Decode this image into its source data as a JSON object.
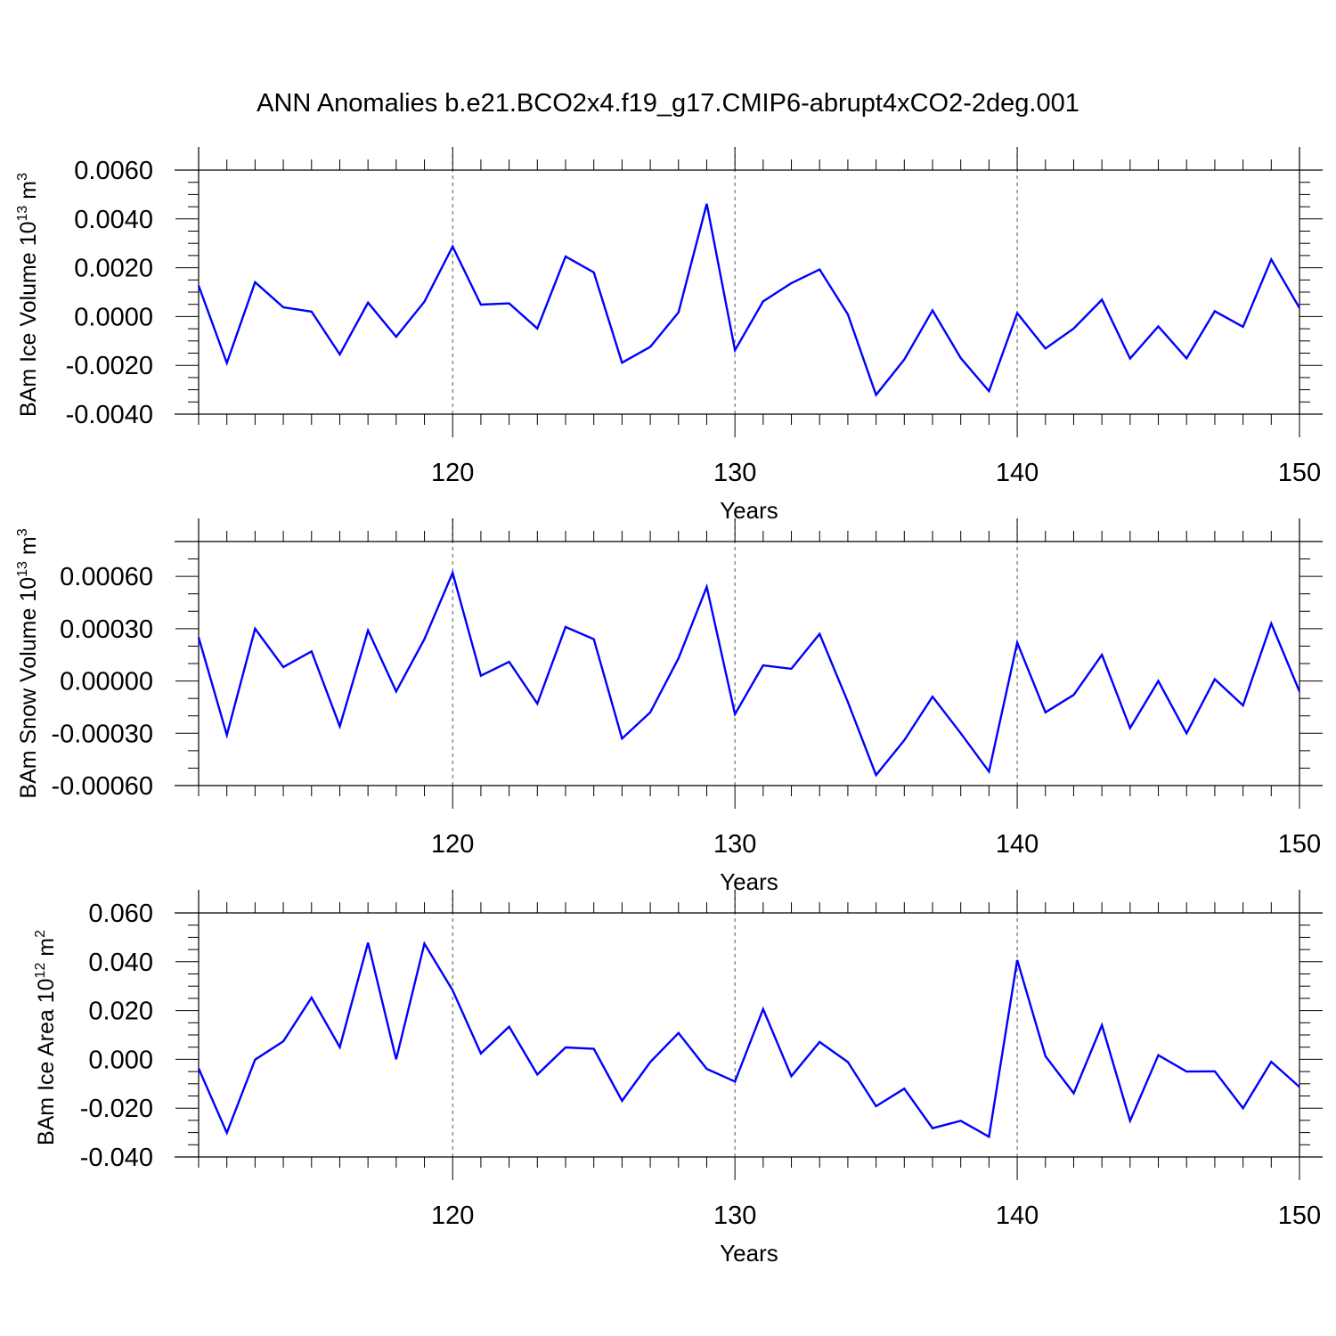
{
  "title": "ANN Anomalies b.e21.BCO2x4.f19_g17.CMIP6-abrupt4xCO2-2deg.001",
  "style": {
    "line_color": "#0000ff",
    "axis_color": "#000000",
    "grid_color": "#555555"
  },
  "chart_data": [
    {
      "type": "line",
      "xlabel": "Years",
      "ylabel": "BAm Ice Volume 10",
      "ylabel_exp": "13",
      "ylabel_unit": " m",
      "ylabel_unit_exp": "3",
      "xlim": [
        111,
        150
      ],
      "ylim": [
        -0.004,
        0.006
      ],
      "yticks": [
        0.006,
        0.004,
        0.002,
        0.0,
        -0.002,
        -0.004
      ],
      "ytick_labels": [
        "0.0060",
        "0.0040",
        "0.0020",
        "0.0000",
        "-0.0020",
        "-0.0040"
      ],
      "yminor_step": 0.0005,
      "xticks": [
        120,
        130,
        140,
        150
      ],
      "xtick_labels": [
        "120",
        "130",
        "140",
        "150"
      ],
      "x_gridlines": [
        120,
        130,
        140
      ],
      "x": [
        111,
        112,
        113,
        114,
        115,
        116,
        117,
        118,
        119,
        120,
        121,
        122,
        123,
        124,
        125,
        126,
        127,
        128,
        129,
        130,
        131,
        132,
        133,
        134,
        135,
        136,
        137,
        138,
        139,
        140,
        141,
        142,
        143,
        144,
        145,
        146,
        147,
        148,
        149,
        150
      ],
      "values": [
        0.00127,
        -0.0019,
        0.00141,
        0.00038,
        0.0002,
        -0.00155,
        0.00057,
        -0.00083,
        0.00061,
        0.00287,
        0.00049,
        0.00054,
        -0.00049,
        0.00246,
        0.00181,
        -0.00189,
        -0.00124,
        0.00017,
        0.00462,
        -0.00138,
        0.00062,
        0.00137,
        0.00193,
        9e-05,
        -0.00321,
        -0.00176,
        0.00025,
        -0.0017,
        -0.00306,
        0.00014,
        -0.00131,
        -0.00049,
        0.00069,
        -0.00172,
        -0.0004,
        -0.00171,
        0.00022,
        -0.00042,
        0.00234,
        0.00035
      ]
    },
    {
      "type": "line",
      "xlabel": "Years",
      "ylabel": "BAm Snow Volume 10",
      "ylabel_exp": "13",
      "ylabel_unit": " m",
      "ylabel_unit_exp": "3",
      "xlim": [
        111,
        150
      ],
      "ylim": [
        -0.0006,
        0.0008
      ],
      "yticks": [
        0.0006,
        0.0003,
        0.0,
        -0.0003,
        -0.0006
      ],
      "ytick_labels": [
        "0.00060",
        "0.00030",
        "0.00000",
        "-0.00030",
        "-0.00060"
      ],
      "yminor_step": 0.0001,
      "xticks": [
        120,
        130,
        140,
        150
      ],
      "xtick_labels": [
        "120",
        "130",
        "140",
        "150"
      ],
      "x_gridlines": [
        120,
        130,
        140
      ],
      "x": [
        111,
        112,
        113,
        114,
        115,
        116,
        117,
        118,
        119,
        120,
        121,
        122,
        123,
        124,
        125,
        126,
        127,
        128,
        129,
        130,
        131,
        132,
        133,
        134,
        135,
        136,
        137,
        138,
        139,
        140,
        141,
        142,
        143,
        144,
        145,
        146,
        147,
        148,
        149,
        150
      ],
      "values": [
        0.00025,
        -0.00031,
        0.0003,
        8e-05,
        0.00017,
        -0.00026,
        0.00029,
        -6e-05,
        0.00024,
        0.00062,
        3e-05,
        0.00011,
        -0.00013,
        0.00031,
        0.00024,
        -0.00033,
        -0.00018,
        0.00013,
        0.00054,
        -0.00019,
        9e-05,
        7e-05,
        0.00027,
        -0.00012,
        -0.00054,
        -0.00034,
        -9e-05,
        -0.0003,
        -0.00052,
        0.00022,
        -0.00018,
        -8e-05,
        0.00015,
        -0.00027,
        0.0,
        -0.0003,
        1e-05,
        -0.00014,
        0.00033,
        -6e-05
      ]
    },
    {
      "type": "line",
      "xlabel": "Years",
      "ylabel": "BAm Ice Area 10",
      "ylabel_exp": "12",
      "ylabel_unit": " m",
      "ylabel_unit_exp": "2",
      "xlim": [
        111,
        150
      ],
      "ylim": [
        -0.04,
        0.06
      ],
      "yticks": [
        0.06,
        0.04,
        0.02,
        0.0,
        -0.02,
        -0.04
      ],
      "ytick_labels": [
        "0.060",
        "0.040",
        "0.020",
        "0.000",
        "-0.020",
        "-0.040"
      ],
      "yminor_step": 0.005,
      "xticks": [
        120,
        130,
        140,
        150
      ],
      "xtick_labels": [
        "120",
        "130",
        "140",
        "150"
      ],
      "x_gridlines": [
        120,
        130,
        140
      ],
      "x": [
        111,
        112,
        113,
        114,
        115,
        116,
        117,
        118,
        119,
        120,
        121,
        122,
        123,
        124,
        125,
        126,
        127,
        128,
        129,
        130,
        131,
        132,
        133,
        134,
        135,
        136,
        137,
        138,
        139,
        140,
        141,
        142,
        143,
        144,
        145,
        146,
        147,
        148,
        149,
        150
      ],
      "values": [
        -0.0037,
        -0.0301,
        -0.0001,
        0.0074,
        0.0253,
        0.005,
        0.0478,
        0.0,
        0.0474,
        0.0283,
        0.0024,
        0.0134,
        -0.0062,
        0.0049,
        0.0043,
        -0.017,
        -0.0011,
        0.0108,
        -0.0039,
        -0.0091,
        0.0206,
        -0.0069,
        0.0071,
        -0.0011,
        -0.0192,
        -0.012,
        -0.0282,
        -0.0252,
        -0.0317,
        0.0407,
        0.0013,
        -0.0139,
        0.014,
        -0.0252,
        0.0017,
        -0.005,
        -0.0049,
        -0.02,
        -0.001,
        -0.0113
      ]
    }
  ]
}
